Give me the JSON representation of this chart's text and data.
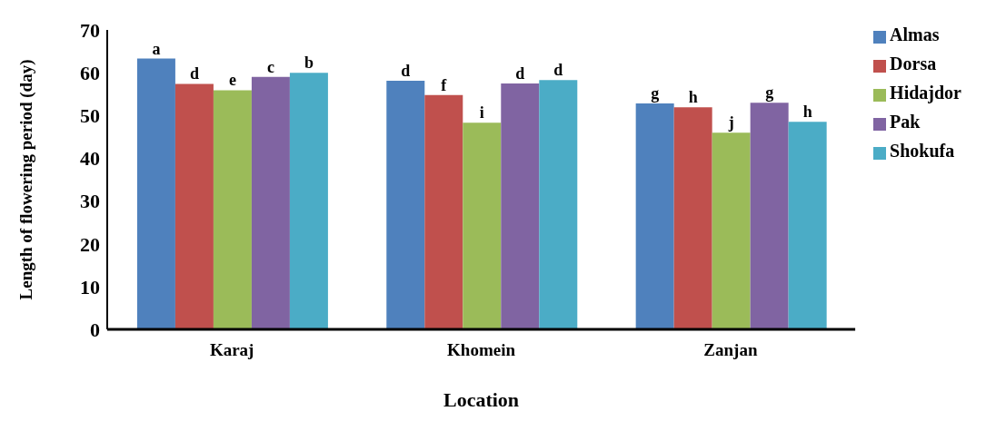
{
  "chart_data": {
    "type": "bar",
    "xlabel": "Location",
    "ylabel": "Length of flowering period (day)",
    "categories": [
      "Karaj",
      "Khomein",
      "Zanjan"
    ],
    "series": [
      {
        "name": "Almas",
        "color": "#4f81bd",
        "values": [
          63.3,
          58.1,
          52.8
        ],
        "value_labels": [
          "a",
          "d",
          "g"
        ]
      },
      {
        "name": "Dorsa",
        "color": "#c0504d",
        "values": [
          57.4,
          54.8,
          51.9
        ],
        "value_labels": [
          "d",
          "f",
          "h"
        ]
      },
      {
        "name": "Hidajdor",
        "color": "#9bbb59",
        "values": [
          55.9,
          48.3,
          46.0
        ],
        "value_labels": [
          "e",
          "i",
          "j"
        ]
      },
      {
        "name": "Pak",
        "color": "#8064a2",
        "values": [
          59.0,
          57.5,
          53.0
        ],
        "value_labels": [
          "c",
          "d",
          "g"
        ]
      },
      {
        "name": "Shokufa",
        "color": "#4bacc6",
        "values": [
          60.0,
          58.3,
          48.5
        ],
        "value_labels": [
          "b",
          "d",
          "h"
        ]
      }
    ],
    "ylim": [
      0,
      70
    ],
    "yticks": [
      0,
      10,
      20,
      30,
      40,
      50,
      60,
      70
    ],
    "grid": false,
    "legend": "right"
  }
}
